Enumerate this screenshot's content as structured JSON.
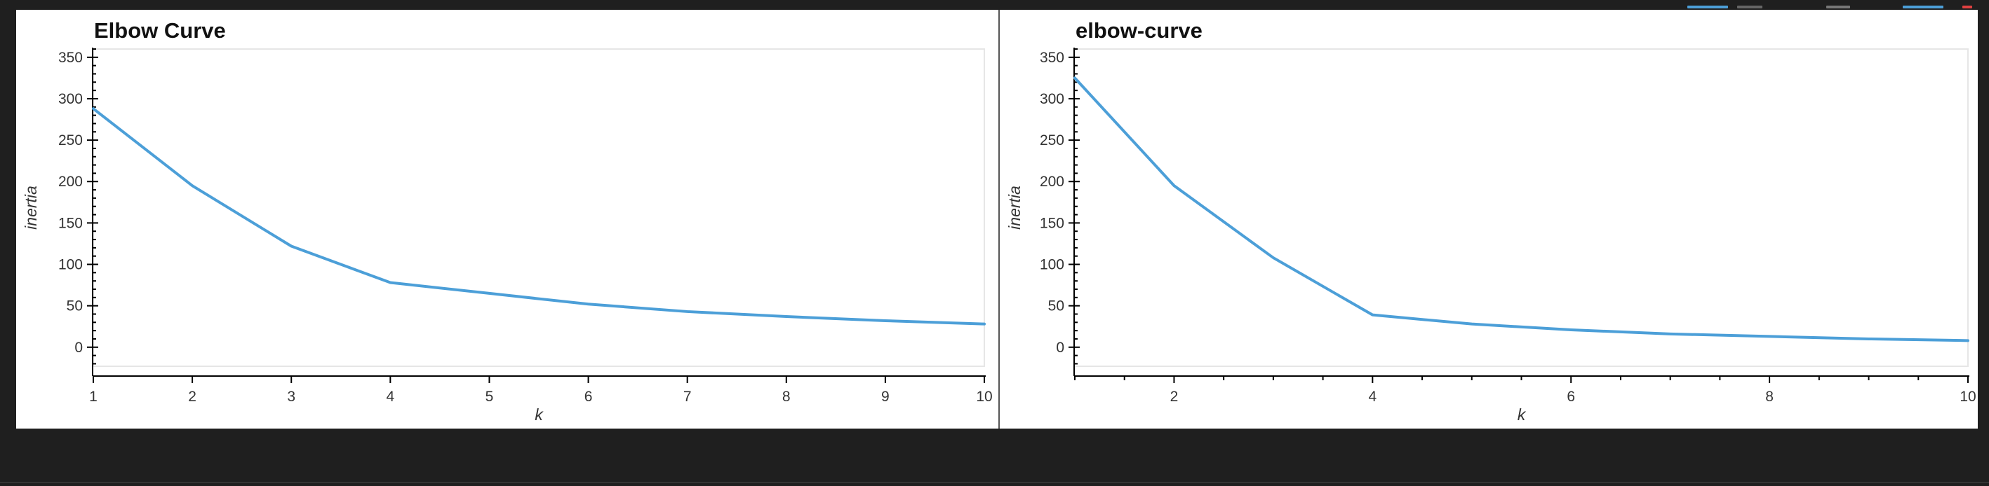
{
  "page": {
    "background": "#1f1f1f",
    "panel_background": "#ffffff"
  },
  "chart_data": [
    {
      "type": "line",
      "title": "Elbow Curve",
      "xlabel": "k",
      "ylabel": "inertia",
      "x": [
        1,
        2,
        3,
        4,
        5,
        6,
        7,
        8,
        9,
        10
      ],
      "series": [
        {
          "values": [
            288,
            195,
            122,
            78,
            65,
            52,
            43,
            37,
            32,
            28
          ],
          "color": "#4c9fd8"
        }
      ],
      "xlim": [
        1,
        10
      ],
      "ylim": [
        -23,
        360
      ],
      "xticks": [
        1,
        2,
        3,
        4,
        5,
        6,
        7,
        8,
        9,
        10
      ],
      "yticks": [
        0,
        50,
        100,
        150,
        200,
        250,
        300,
        350
      ],
      "grid": false
    },
    {
      "type": "line",
      "title": "elbow-curve",
      "xlabel": "k",
      "ylabel": "inertia",
      "x": [
        1,
        2,
        3,
        4,
        5,
        6,
        7,
        8,
        9,
        10
      ],
      "series": [
        {
          "values": [
            325,
            195,
            108,
            39,
            28,
            21,
            16,
            13,
            10,
            8
          ],
          "color": "#4c9fd8"
        }
      ],
      "xlim": [
        1,
        10
      ],
      "ylim": [
        -23,
        360
      ],
      "xticks": [
        2,
        4,
        6,
        8,
        10
      ],
      "yticks": [
        0,
        50,
        100,
        150,
        200,
        250,
        300,
        350
      ],
      "grid": false
    }
  ]
}
